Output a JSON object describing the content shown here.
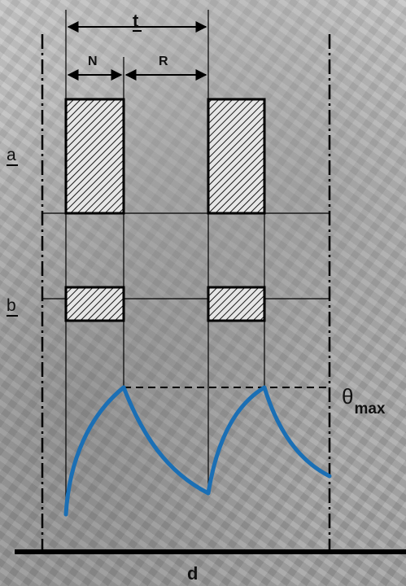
{
  "labels": {
    "period": "t",
    "on_time": "N",
    "rest_time": "R",
    "load_level": "a",
    "loss_level": "b",
    "temp_max_symbol": "θ",
    "temp_max_subscript": "max",
    "time_axis": "d"
  },
  "colors": {
    "curve": "#1a6fb5",
    "line": "#000000",
    "hatch_fill": "#1a1a1a"
  }
}
